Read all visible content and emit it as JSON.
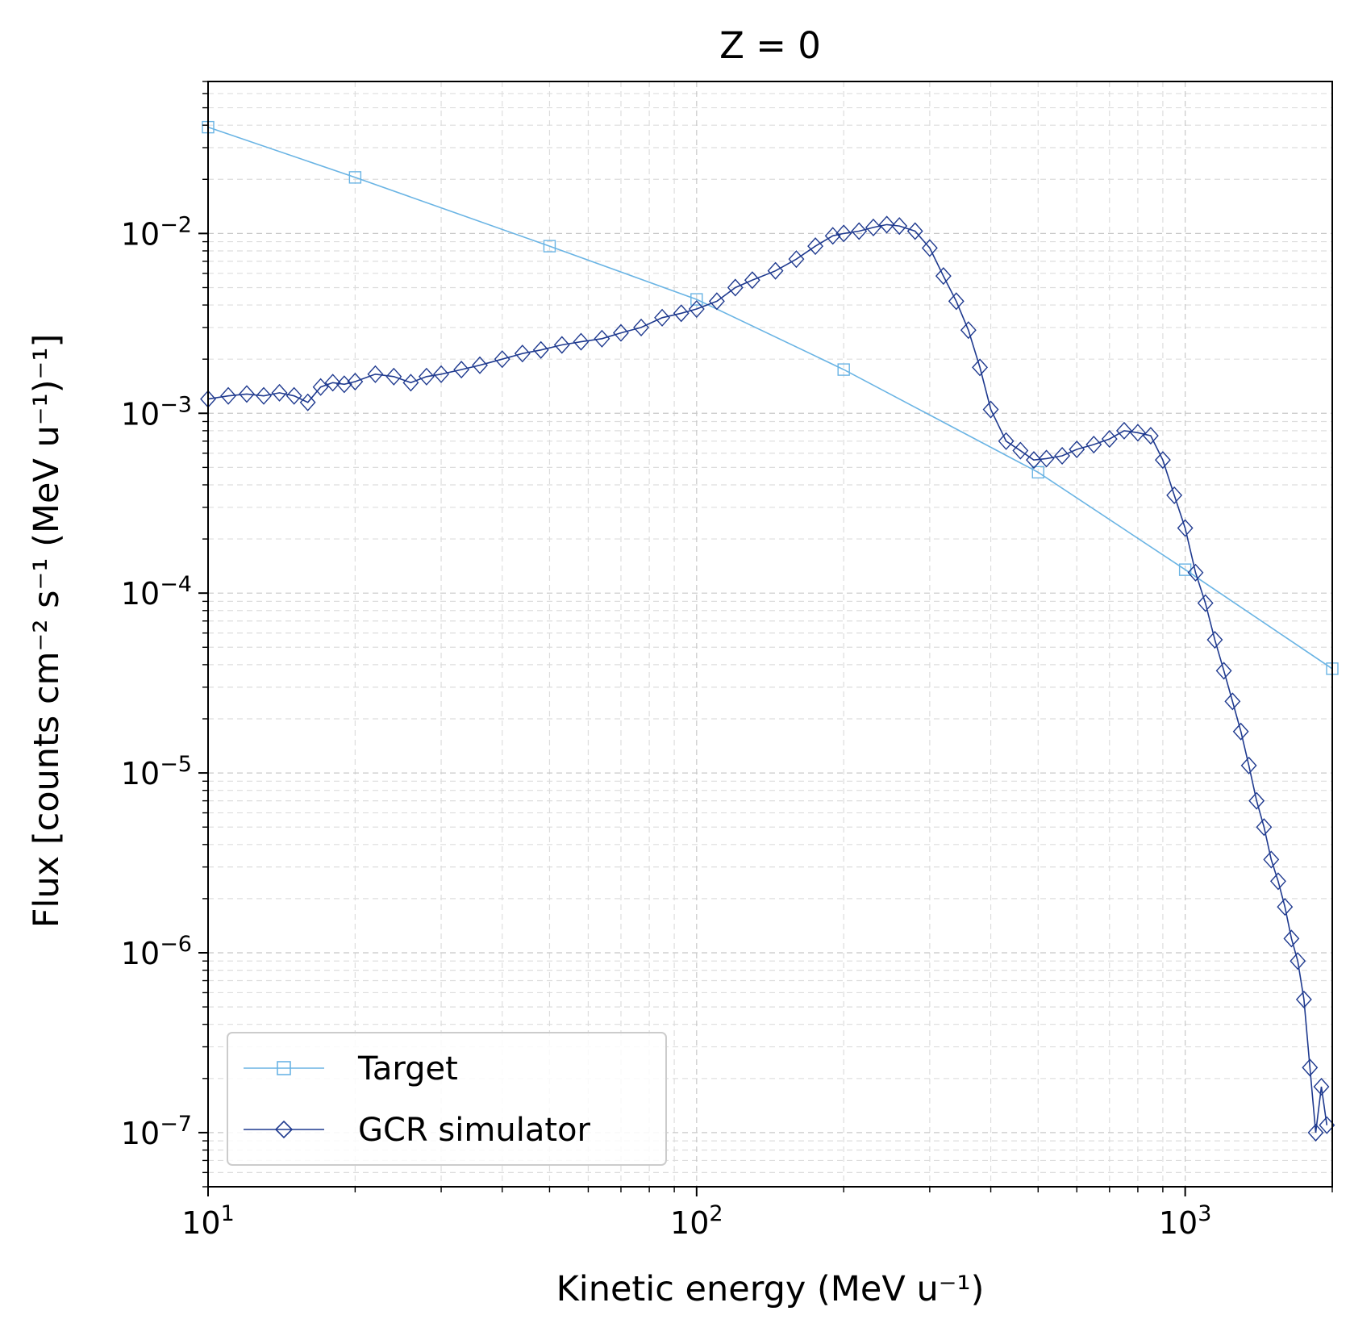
{
  "chart_data": {
    "type": "line",
    "title": "Z = 0",
    "xlabel": "Kinetic energy (MeV u⁻¹)",
    "ylabel": "Flux [counts cm⁻² s⁻¹ (MeV u⁻¹)⁻¹]",
    "xscale": "log",
    "yscale": "log",
    "xlim": [
      10,
      2000
    ],
    "ylim": [
      5e-08,
      0.07
    ],
    "grid": true,
    "legend_position": "lower-left",
    "x_ticks": [
      {
        "value": 10,
        "base": "10",
        "exp": "1"
      },
      {
        "value": 100,
        "base": "10",
        "exp": "2"
      },
      {
        "value": 1000,
        "base": "10",
        "exp": "3"
      }
    ],
    "y_ticks": [
      {
        "value": 1e-07,
        "base": "10",
        "exp": "−7"
      },
      {
        "value": 1e-06,
        "base": "10",
        "exp": "−6"
      },
      {
        "value": 1e-05,
        "base": "10",
        "exp": "−5"
      },
      {
        "value": 0.0001,
        "base": "10",
        "exp": "−4"
      },
      {
        "value": 0.001,
        "base": "10",
        "exp": "−3"
      },
      {
        "value": 0.01,
        "base": "10",
        "exp": "−2"
      }
    ],
    "series": [
      {
        "name": "Target",
        "color": "#6ab4e4",
        "marker": "square",
        "x": [
          10,
          20,
          50,
          100,
          200,
          500,
          1000,
          2000
        ],
        "y": [
          0.039,
          0.0205,
          0.0085,
          0.0043,
          0.00175,
          0.00047,
          0.000135,
          3.8e-05
        ]
      },
      {
        "name": "GCR simulator",
        "color": "#1f3a8f",
        "marker": "diamond",
        "x": [
          10,
          11,
          12,
          13,
          14,
          15,
          16,
          17,
          18,
          19,
          20,
          22,
          24,
          26,
          28,
          30,
          33,
          36,
          40,
          44,
          48,
          53,
          58,
          64,
          70,
          77,
          85,
          93,
          100,
          110,
          120,
          130,
          145,
          160,
          175,
          190,
          200,
          215,
          230,
          245,
          260,
          280,
          300,
          320,
          340,
          360,
          380,
          400,
          430,
          460,
          490,
          520,
          560,
          600,
          650,
          700,
          750,
          800,
          850,
          900,
          950,
          1000,
          1050,
          1100,
          1150,
          1200,
          1250,
          1300,
          1350,
          1400,
          1450,
          1500,
          1550,
          1600,
          1650,
          1700,
          1750,
          1800,
          1850,
          1900,
          1950
        ],
        "y": [
          0.0012,
          0.00125,
          0.00128,
          0.00125,
          0.0013,
          0.00125,
          0.00115,
          0.0014,
          0.00148,
          0.00145,
          0.0015,
          0.00165,
          0.0016,
          0.00148,
          0.0016,
          0.00165,
          0.00175,
          0.00185,
          0.002,
          0.00215,
          0.00225,
          0.0024,
          0.0025,
          0.0026,
          0.0028,
          0.003,
          0.0034,
          0.0036,
          0.0038,
          0.0042,
          0.005,
          0.0055,
          0.0062,
          0.0072,
          0.0085,
          0.0097,
          0.01,
          0.0103,
          0.0108,
          0.0112,
          0.011,
          0.0103,
          0.0083,
          0.0058,
          0.0042,
          0.0029,
          0.0018,
          0.00105,
          0.0007,
          0.00062,
          0.00055,
          0.00056,
          0.00058,
          0.00063,
          0.00067,
          0.00072,
          0.0008,
          0.00078,
          0.00075,
          0.00055,
          0.00035,
          0.00023,
          0.00013,
          8.8e-05,
          5.5e-05,
          3.7e-05,
          2.5e-05,
          1.7e-05,
          1.1e-05,
          7e-06,
          5e-06,
          3.3e-06,
          2.5e-06,
          1.8e-06,
          1.2e-06,
          9e-07,
          5.5e-07,
          2.3e-07,
          1e-07,
          1.8e-07,
          1.1e-07
        ]
      }
    ]
  }
}
